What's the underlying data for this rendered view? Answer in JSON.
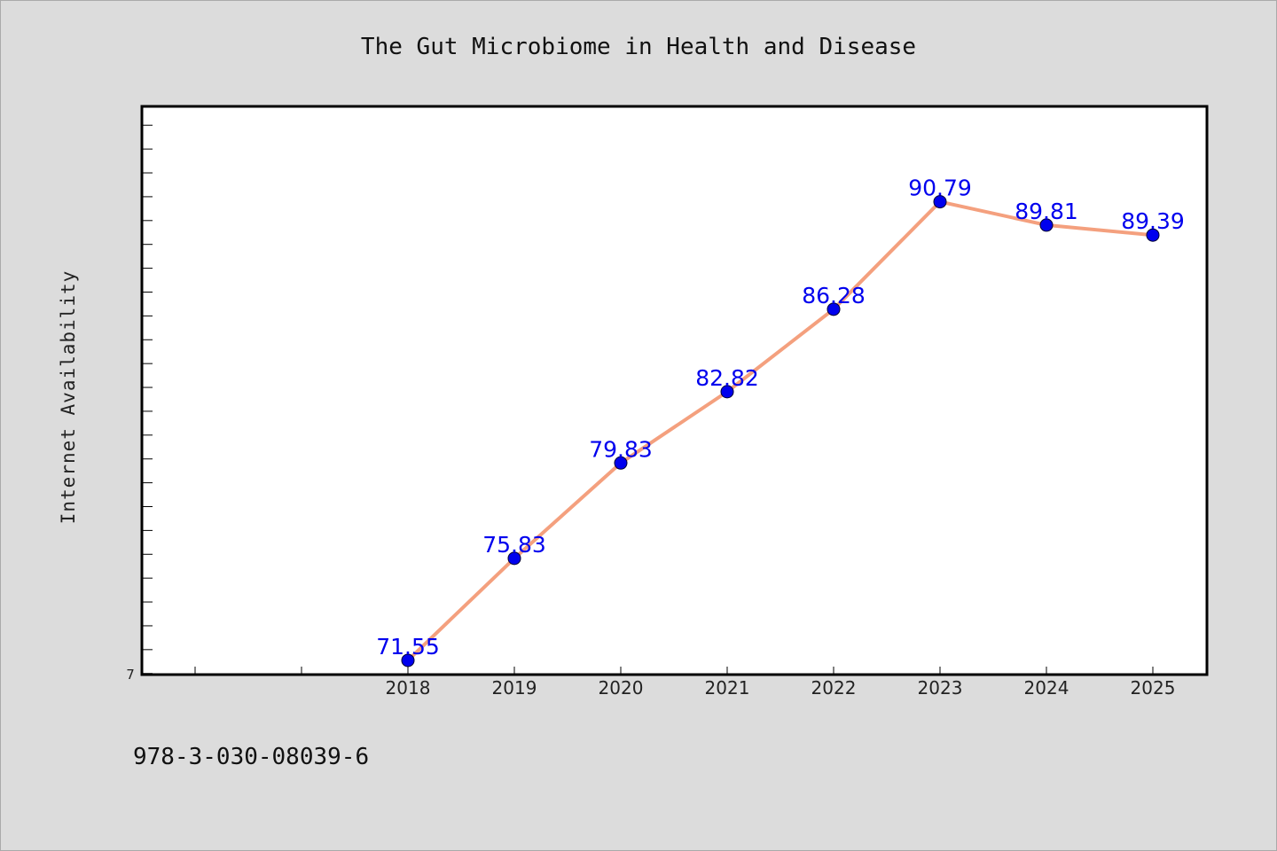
{
  "chart_data": {
    "type": "line",
    "title": "The Gut Microbiome in Health and Disease",
    "xlabel": "",
    "ylabel": "Internet Availability",
    "categories": [
      "2018",
      "2019",
      "2020",
      "2021",
      "2022",
      "2023",
      "2024",
      "2025"
    ],
    "x_axis_slots": 10,
    "x_first_category_slot": 2,
    "series": [
      {
        "values": [
          71.55,
          75.83,
          79.83,
          82.82,
          86.28,
          90.79,
          89.81,
          89.39
        ],
        "labels": [
          "71.55",
          "75.83",
          "79.83",
          "82.82",
          "86.28",
          "90.79",
          "89.81",
          "89.39"
        ]
      }
    ],
    "y_min_tick_label": "7",
    "ylim": [
      70.99,
      94.79
    ],
    "y_minor_tick_step": 1,
    "grid": false,
    "legend": "none",
    "line_color": "#f4a07e",
    "marker_color": "#0000ee",
    "label_color": "#0000ee",
    "frame_color": "#000000",
    "plot_background": "#ffffff"
  },
  "footer": {
    "isbn": "978-3-030-08039-6"
  }
}
